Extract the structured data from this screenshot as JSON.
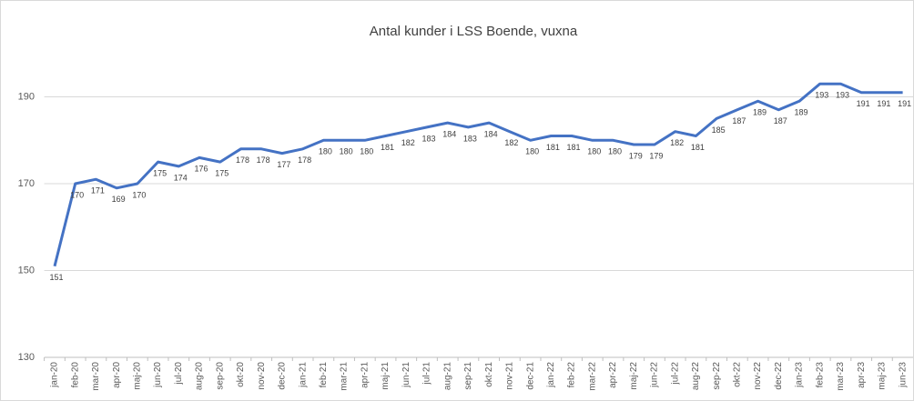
{
  "chart_data": {
    "type": "line",
    "title": "Antal kunder i LSS Boende, vuxna",
    "categories": [
      "jan-20",
      "feb-20",
      "mar-20",
      "apr-20",
      "maj-20",
      "jun-20",
      "jul-20",
      "aug-20",
      "sep-20",
      "okt-20",
      "nov-20",
      "dec-20",
      "jan-21",
      "feb-21",
      "mar-21",
      "apr-21",
      "maj-21",
      "jun-21",
      "jul-21",
      "aug-21",
      "sep-21",
      "okt-21",
      "nov-21",
      "dec-21",
      "jan-22",
      "feb-22",
      "mar-22",
      "apr-22",
      "maj-22",
      "jun-22",
      "jul-22",
      "aug-22",
      "sep-22",
      "okt-22",
      "nov-22",
      "dec-22",
      "jan-23",
      "feb-23",
      "mar-23",
      "apr-23",
      "maj-23",
      "jun-23"
    ],
    "values": [
      151,
      170,
      171,
      169,
      170,
      175,
      174,
      176,
      175,
      178,
      178,
      177,
      178,
      180,
      180,
      180,
      181,
      182,
      183,
      184,
      183,
      184,
      182,
      180,
      181,
      181,
      180,
      180,
      179,
      179,
      182,
      181,
      185,
      187,
      189,
      187,
      189,
      193,
      193,
      191,
      191,
      191
    ],
    "color": "#4472c4",
    "ylim": [
      130,
      210
    ],
    "yticks": [
      130,
      150,
      170,
      190
    ],
    "grid": true
  }
}
